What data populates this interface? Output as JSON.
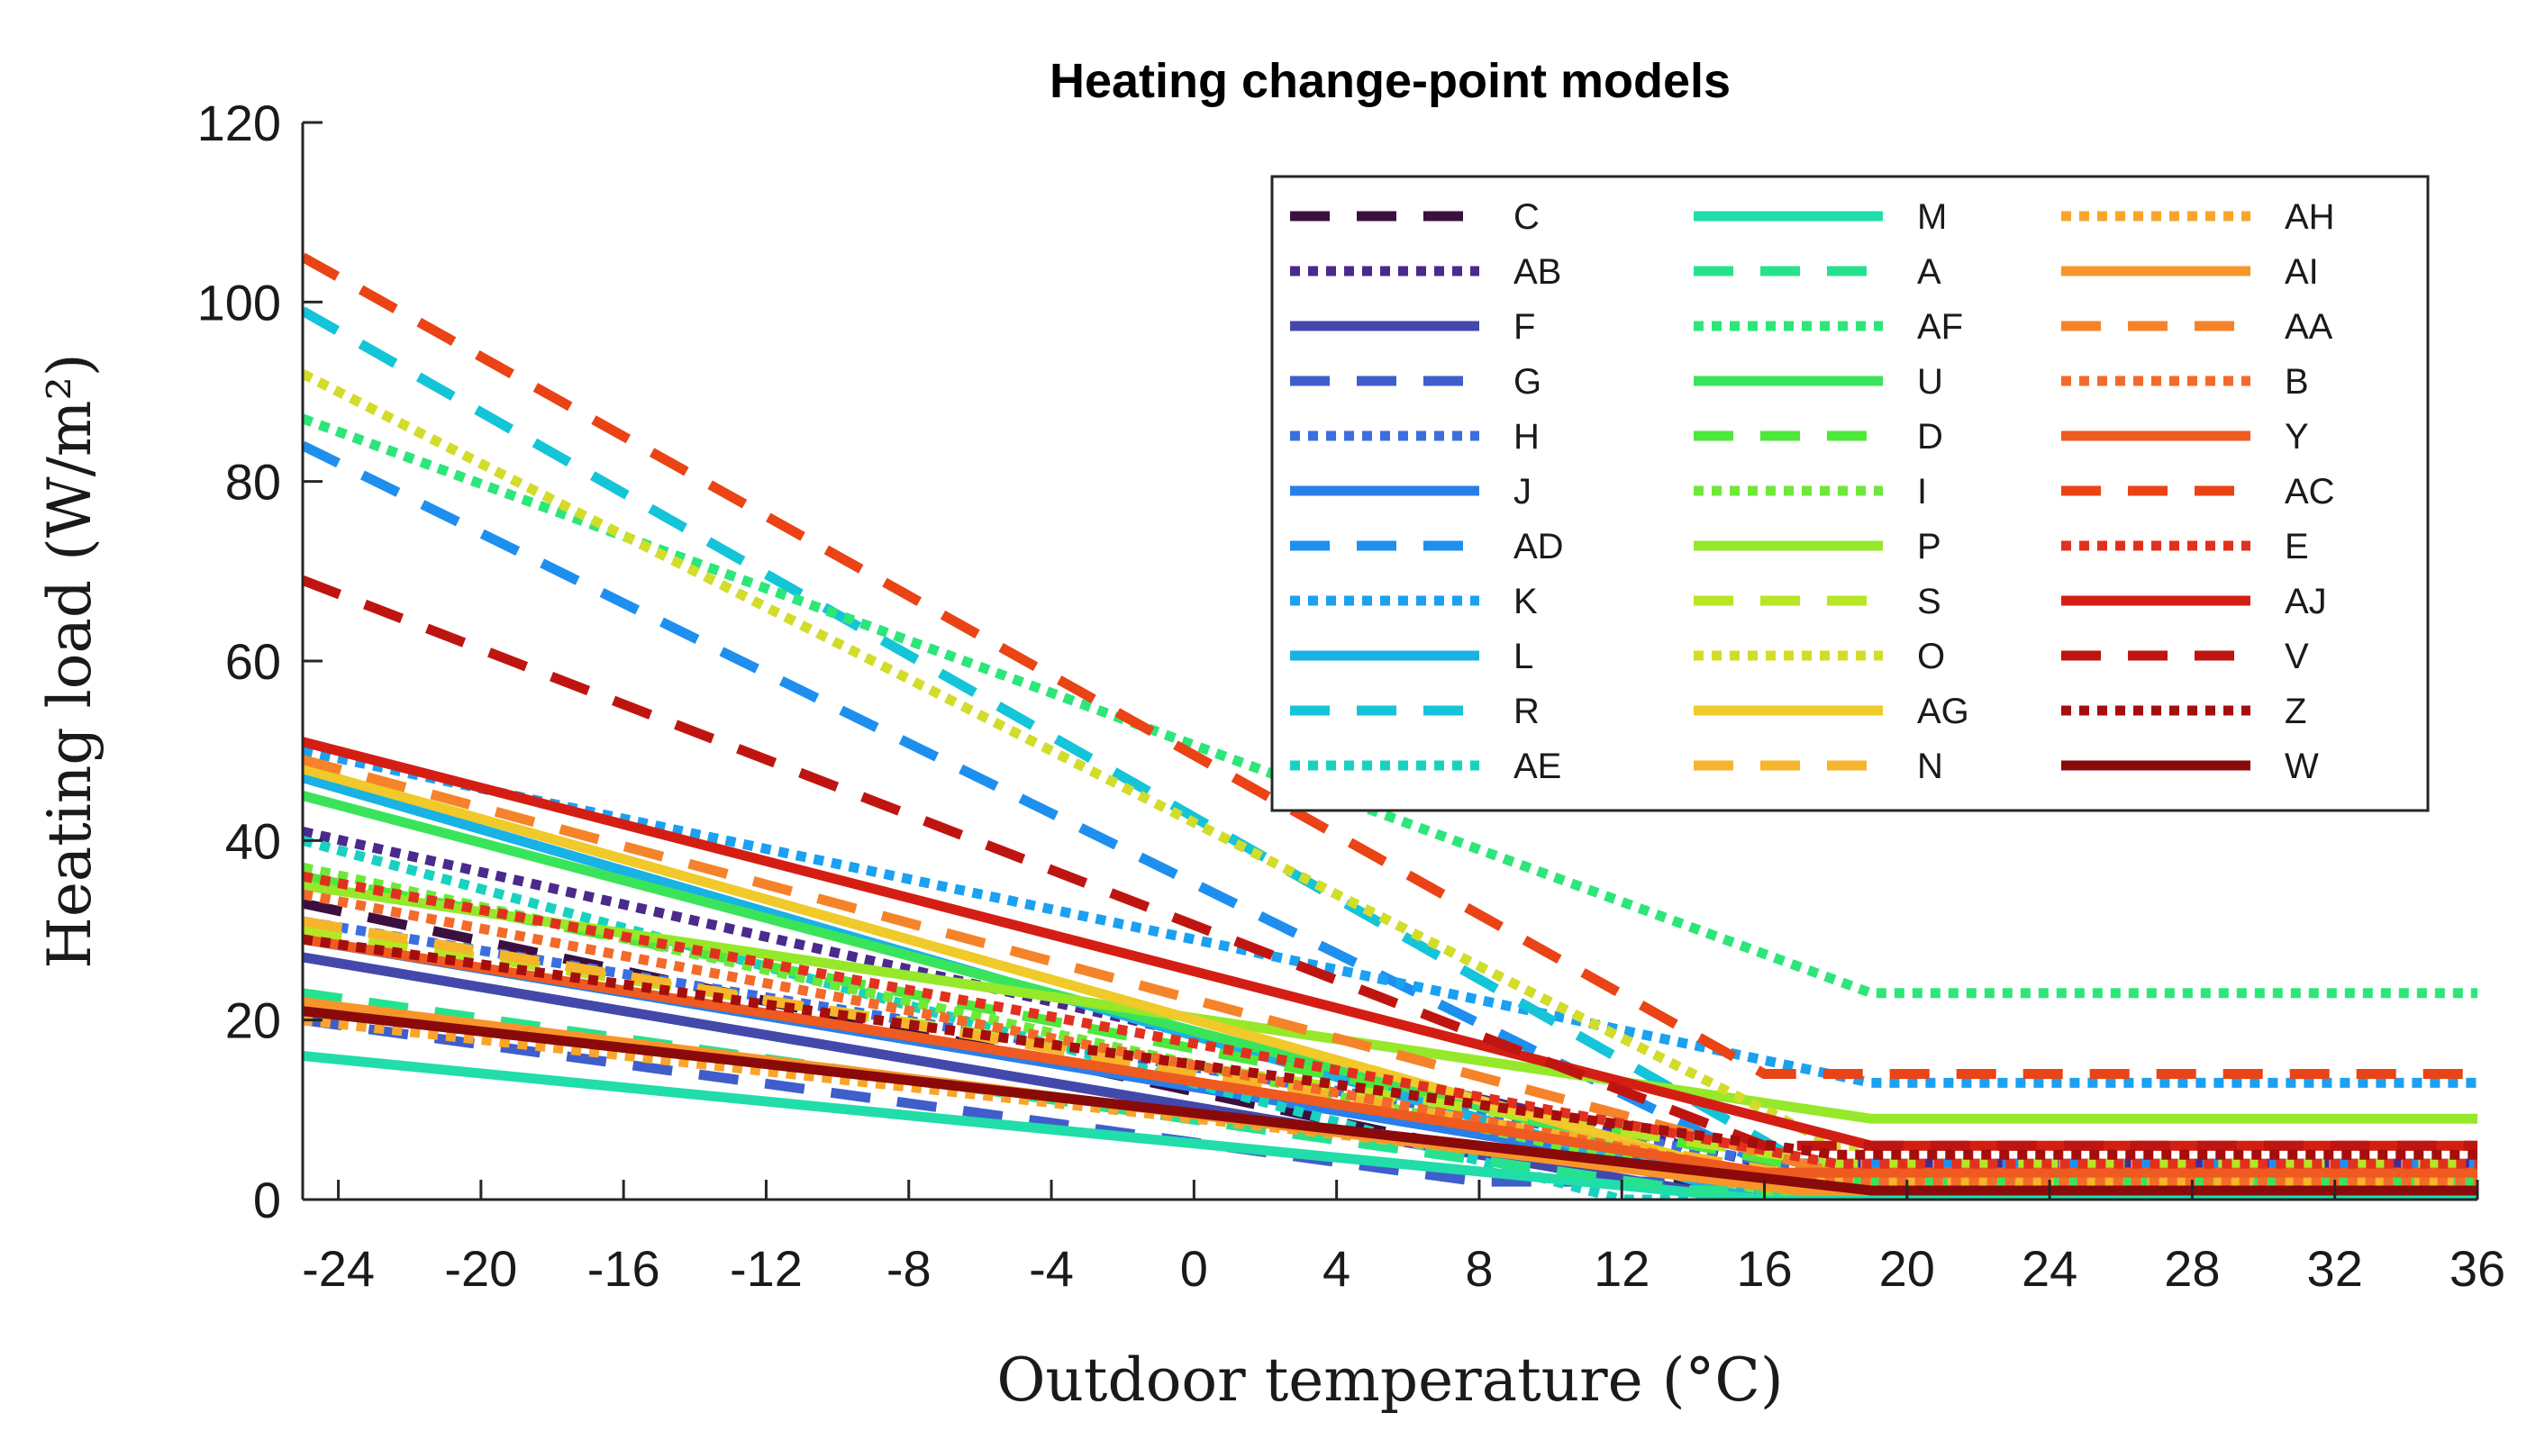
{
  "chart_data": {
    "type": "line",
    "title": "Heating change-point models",
    "xlabel": "Outdoor temperature (°C)",
    "ylabel": "Heating load (W/m²)",
    "xlim": [
      -25,
      36
    ],
    "ylim": [
      0,
      120
    ],
    "xticks": [
      -24,
      -20,
      -16,
      -12,
      -8,
      -4,
      0,
      4,
      8,
      12,
      16,
      20,
      24,
      28,
      32,
      36
    ],
    "yticks": [
      0,
      20,
      40,
      60,
      80,
      100,
      120
    ],
    "legend_position": "top-right",
    "series": [
      {
        "name": "C",
        "color": "#3b0f3f",
        "dash": "dashed",
        "x": [
          -25,
          12,
          36
        ],
        "y": [
          33,
          2,
          2
        ]
      },
      {
        "name": "AB",
        "color": "#4a2a8c",
        "dash": "dotted",
        "x": [
          -25,
          16,
          36
        ],
        "y": [
          41,
          4,
          4
        ]
      },
      {
        "name": "F",
        "color": "#4349ab",
        "dash": "solid",
        "x": [
          -25,
          14,
          36
        ],
        "y": [
          27,
          1,
          1
        ]
      },
      {
        "name": "G",
        "color": "#3f5ecb",
        "dash": "dashed",
        "x": [
          -25,
          8,
          36
        ],
        "y": [
          20,
          2,
          2
        ]
      },
      {
        "name": "H",
        "color": "#3b6fe0",
        "dash": "dotted",
        "x": [
          -25,
          18,
          36
        ],
        "y": [
          31,
          3,
          3
        ]
      },
      {
        "name": "J",
        "color": "#2a7ee8",
        "dash": "solid",
        "x": [
          -25,
          16,
          36
        ],
        "y": [
          29,
          2,
          2
        ]
      },
      {
        "name": "AD",
        "color": "#1e8fef",
        "dash": "dashed",
        "x": [
          -25,
          16,
          36
        ],
        "y": [
          84,
          4,
          4
        ]
      },
      {
        "name": "K",
        "color": "#1ba0f2",
        "dash": "dotted",
        "x": [
          -25,
          19,
          36
        ],
        "y": [
          50,
          13,
          13
        ]
      },
      {
        "name": "L",
        "color": "#18b2e5",
        "dash": "solid",
        "x": [
          -25,
          15,
          36
        ],
        "y": [
          47,
          1,
          1
        ]
      },
      {
        "name": "R",
        "color": "#14c4d8",
        "dash": "dashed",
        "x": [
          -25,
          18,
          36
        ],
        "y": [
          99,
          2,
          2
        ]
      },
      {
        "name": "AE",
        "color": "#18d2c0",
        "dash": "dotted",
        "x": [
          -25,
          12,
          36
        ],
        "y": [
          40,
          0,
          0
        ]
      },
      {
        "name": "M",
        "color": "#20ddaa",
        "dash": "solid",
        "x": [
          -25,
          16,
          36
        ],
        "y": [
          16,
          0,
          0
        ]
      },
      {
        "name": "A",
        "color": "#26e28f",
        "dash": "dashed",
        "x": [
          -25,
          14,
          36
        ],
        "y": [
          23,
          1,
          1
        ]
      },
      {
        "name": "AF",
        "color": "#2de67a",
        "dash": "dotted",
        "x": [
          -25,
          19,
          36
        ],
        "y": [
          87,
          23,
          23
        ]
      },
      {
        "name": "U",
        "color": "#3ae45a",
        "dash": "solid",
        "x": [
          -25,
          16,
          36
        ],
        "y": [
          45,
          2,
          2
        ]
      },
      {
        "name": "D",
        "color": "#4de83a",
        "dash": "dashed",
        "x": [
          -25,
          18,
          36
        ],
        "y": [
          36,
          3,
          3
        ]
      },
      {
        "name": "I",
        "color": "#6ee83a",
        "dash": "dotted",
        "x": [
          -25,
          16,
          36
        ],
        "y": [
          37,
          1,
          1
        ]
      },
      {
        "name": "P",
        "color": "#95e82a",
        "dash": "solid",
        "x": [
          -25,
          19,
          36
        ],
        "y": [
          35,
          9,
          9
        ]
      },
      {
        "name": "S",
        "color": "#b7e625",
        "dash": "dashed",
        "x": [
          -25,
          18,
          36
        ],
        "y": [
          30,
          4,
          4
        ]
      },
      {
        "name": "O",
        "color": "#d2dc2a",
        "dash": "dotted",
        "x": [
          -25,
          18,
          36
        ],
        "y": [
          92,
          6,
          6
        ]
      },
      {
        "name": "AG",
        "color": "#f0c92a",
        "dash": "solid",
        "x": [
          -25,
          17,
          36
        ],
        "y": [
          48,
          1,
          1
        ]
      },
      {
        "name": "N",
        "color": "#f6b52a",
        "dash": "dashed",
        "x": [
          -25,
          18,
          36
        ],
        "y": [
          31,
          2,
          2
        ]
      },
      {
        "name": "AH",
        "color": "#f9a52a",
        "dash": "dotted",
        "x": [
          -25,
          16,
          36
        ],
        "y": [
          20,
          2,
          2
        ]
      },
      {
        "name": "AI",
        "color": "#f8952a",
        "dash": "solid",
        "x": [
          -25,
          17,
          36
        ],
        "y": [
          22,
          1,
          1
        ]
      },
      {
        "name": "AA",
        "color": "#f5832a",
        "dash": "dashed",
        "x": [
          -25,
          18,
          36
        ],
        "y": [
          49,
          3,
          3
        ]
      },
      {
        "name": "B",
        "color": "#f36a2a",
        "dash": "dotted",
        "x": [
          -25,
          17,
          36
        ],
        "y": [
          34,
          2,
          2
        ]
      },
      {
        "name": "Y",
        "color": "#ee5a20",
        "dash": "solid",
        "x": [
          -25,
          16,
          36
        ],
        "y": [
          29,
          3,
          3
        ]
      },
      {
        "name": "AC",
        "color": "#ea4315",
        "dash": "dashed",
        "x": [
          -25,
          16,
          36
        ],
        "y": [
          105,
          14,
          14
        ]
      },
      {
        "name": "E",
        "color": "#e2301e",
        "dash": "dotted",
        "x": [
          -25,
          18,
          36
        ],
        "y": [
          36,
          4,
          4
        ]
      },
      {
        "name": "AJ",
        "color": "#d41e14",
        "dash": "solid",
        "x": [
          -25,
          19,
          36
        ],
        "y": [
          51,
          6,
          6
        ]
      },
      {
        "name": "V",
        "color": "#bf1510",
        "dash": "dashed",
        "x": [
          -25,
          16,
          36
        ],
        "y": [
          69,
          6,
          6
        ]
      },
      {
        "name": "Z",
        "color": "#a60d0d",
        "dash": "dotted",
        "x": [
          -25,
          18,
          36
        ],
        "y": [
          29,
          5,
          5
        ]
      },
      {
        "name": "W",
        "color": "#8a0a0a",
        "dash": "solid",
        "x": [
          -25,
          19,
          36
        ],
        "y": [
          21,
          1,
          1
        ]
      }
    ]
  }
}
